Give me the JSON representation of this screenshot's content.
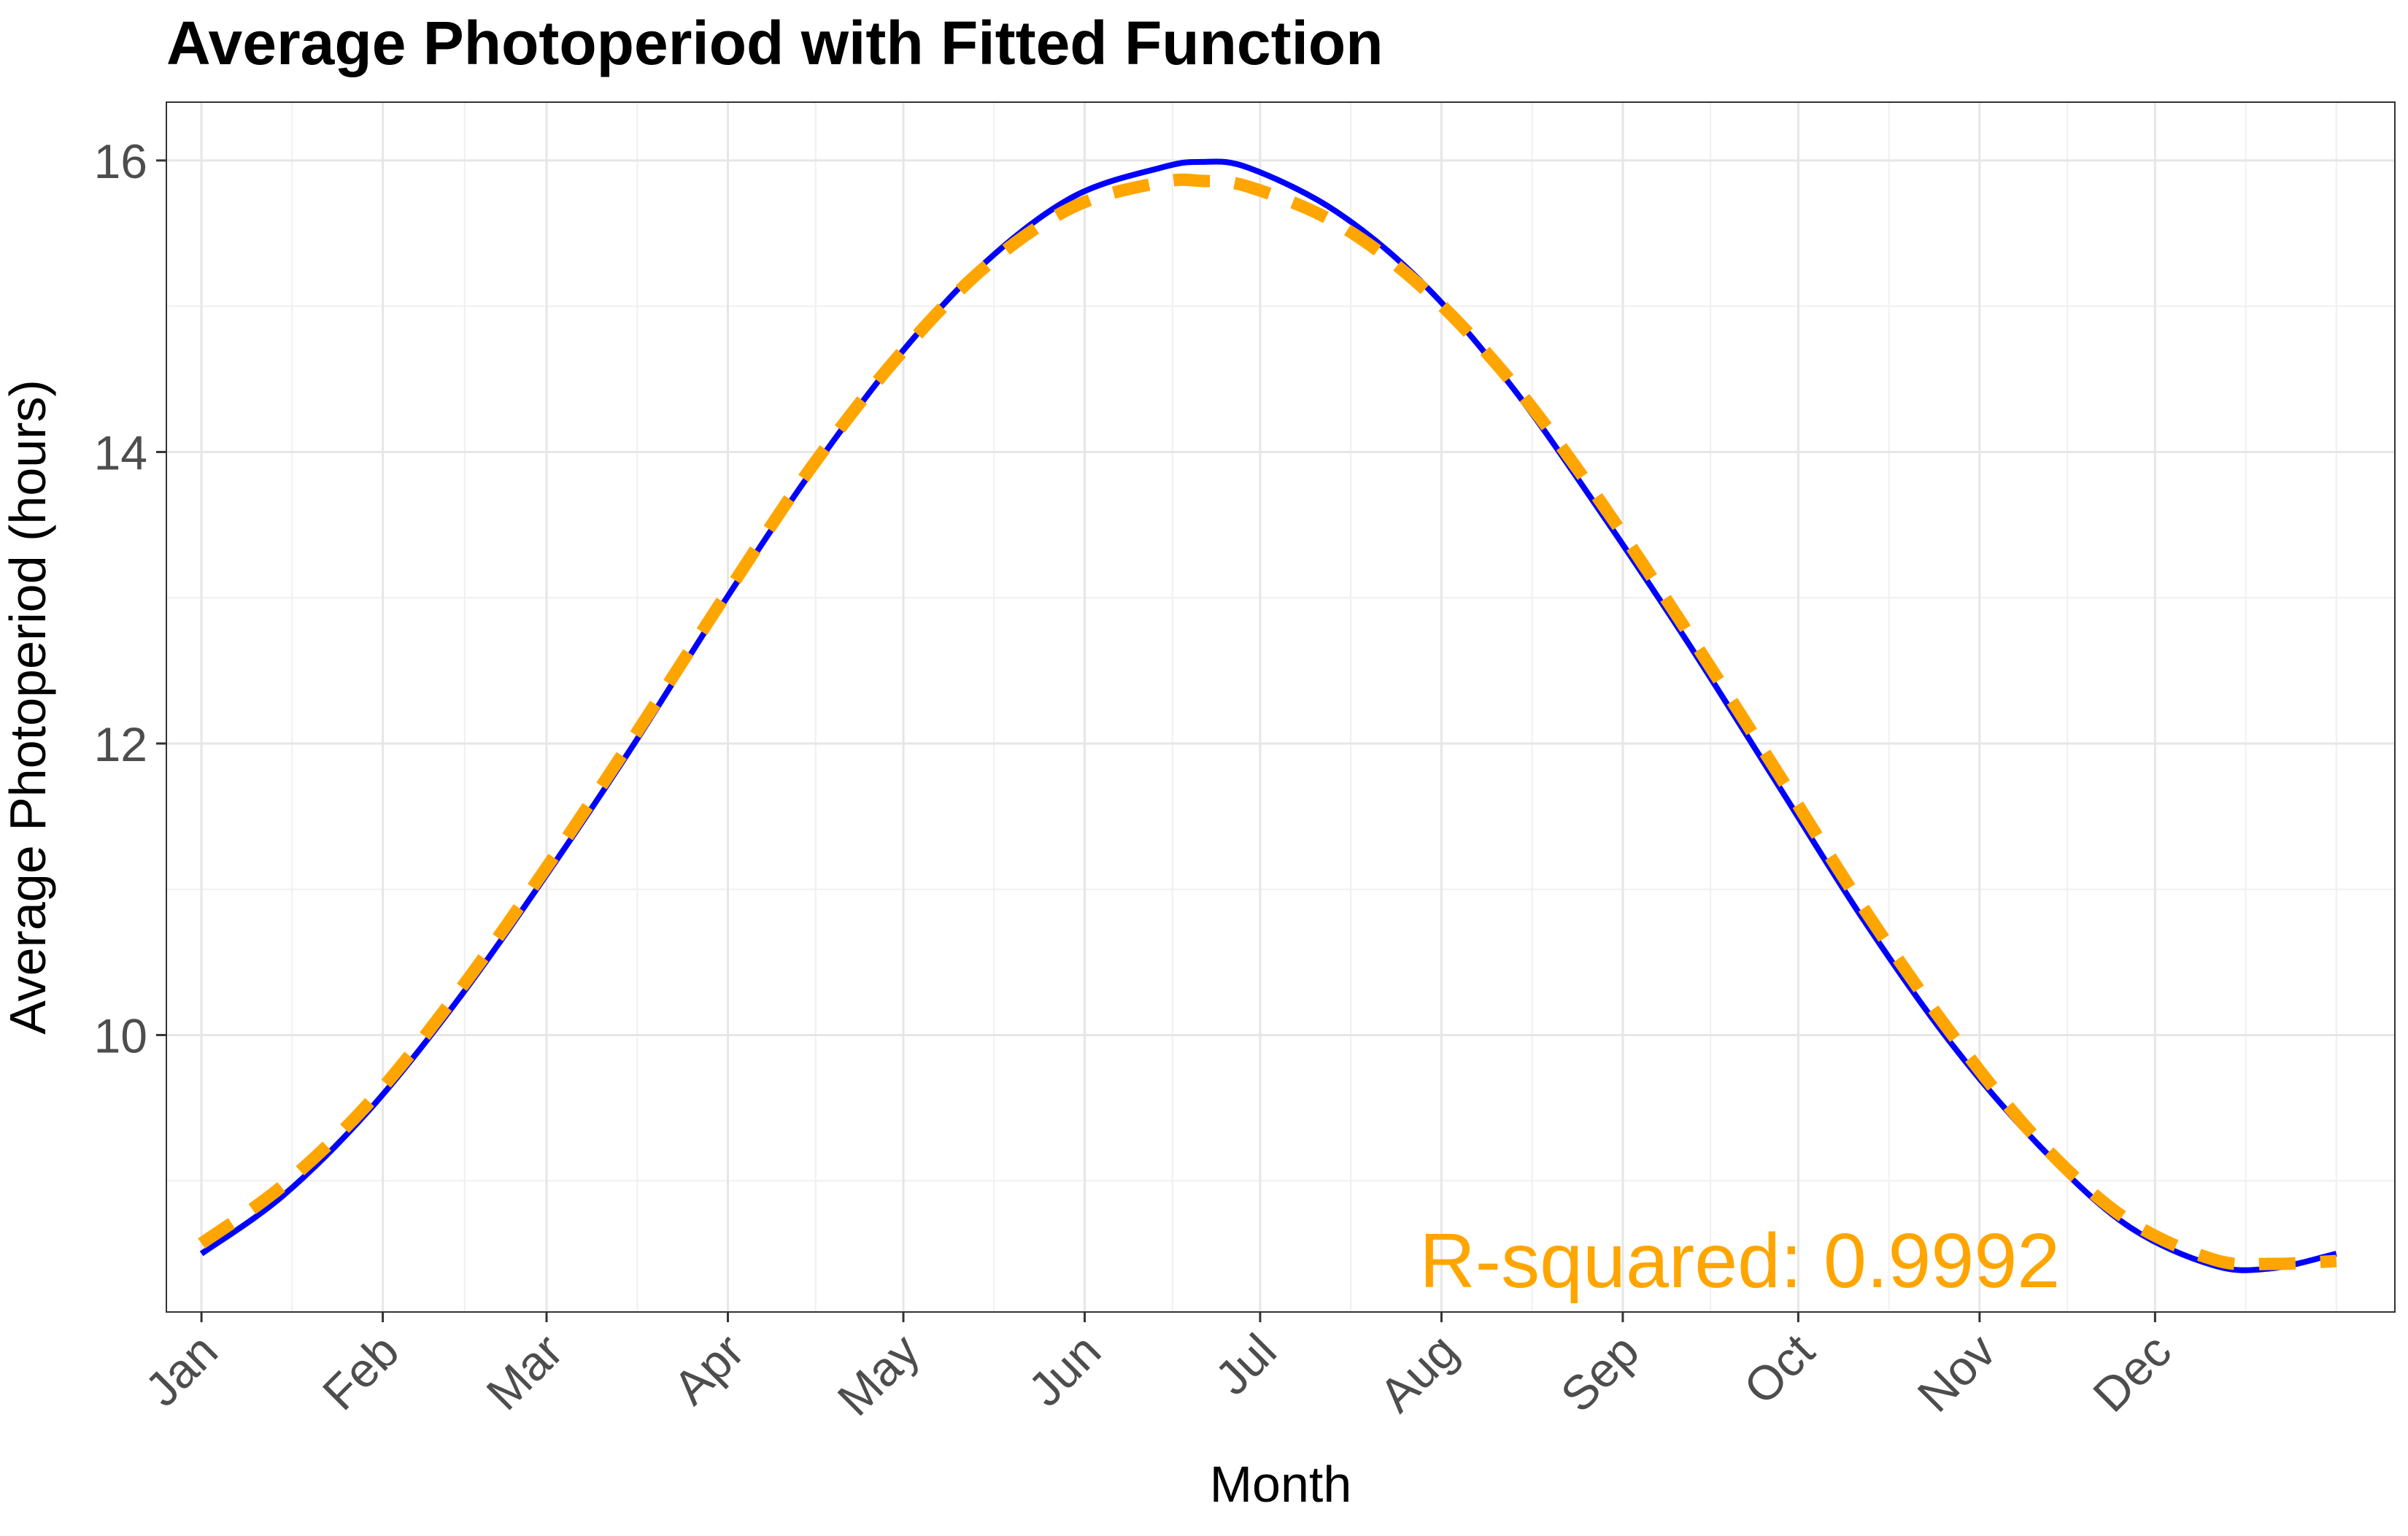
{
  "chart_data": {
    "type": "line",
    "title": "Average Photoperiod with Fitted Function",
    "xlabel": "Month",
    "ylabel": "Average Photoperiod (hours)",
    "x_unit": "day of year",
    "xlim": [
      -5,
      376
    ],
    "ylim": [
      8.1,
      16.4
    ],
    "x_ticks": [
      {
        "label": "Jan",
        "x": 1
      },
      {
        "label": "Feb",
        "x": 32
      },
      {
        "label": "Mar",
        "x": 60
      },
      {
        "label": "Apr",
        "x": 91
      },
      {
        "label": "May",
        "x": 121
      },
      {
        "label": "Jun",
        "x": 152
      },
      {
        "label": "Jul",
        "x": 182
      },
      {
        "label": "Aug",
        "x": 213
      },
      {
        "label": "Sep",
        "x": 244
      },
      {
        "label": "Oct",
        "x": 274
      },
      {
        "label": "Nov",
        "x": 305
      },
      {
        "label": "Dec",
        "x": 335
      }
    ],
    "x_minor_ticks": [
      16.5,
      46,
      75.5,
      106,
      136.5,
      167,
      197.5,
      228.5,
      259,
      289.5,
      320,
      350.5,
      366
    ],
    "y_ticks": [
      10,
      12,
      14,
      16
    ],
    "y_minor_ticks": [
      9,
      11,
      13,
      15
    ],
    "grid": true,
    "series": [
      {
        "style": "solid",
        "color": "#0000ff",
        "x": [
          1,
          15,
          30,
          45,
          60,
          75,
          90,
          105,
          120,
          135,
          150,
          165,
          172,
          180,
          195,
          210,
          225,
          240,
          255,
          270,
          285,
          300,
          315,
          330,
          345,
          355,
          366
        ],
        "y": [
          8.5,
          8.9,
          9.5,
          10.25,
          11.1,
          12.0,
          12.95,
          13.85,
          14.65,
          15.3,
          15.75,
          15.95,
          15.99,
          15.95,
          15.65,
          15.15,
          14.45,
          13.6,
          12.7,
          11.75,
          10.8,
          9.95,
          9.25,
          8.7,
          8.42,
          8.4,
          8.5
        ]
      },
      {
        "style": "dashed",
        "color": "#ffa500",
        "x": [
          1,
          15,
          30,
          45,
          60,
          75,
          90,
          105,
          120,
          135,
          150,
          165,
          172,
          180,
          195,
          210,
          225,
          240,
          255,
          270,
          285,
          300,
          315,
          330,
          345,
          355,
          366
        ],
        "y": [
          8.57,
          8.97,
          9.55,
          10.3,
          11.15,
          12.05,
          12.98,
          13.88,
          14.65,
          15.27,
          15.68,
          15.85,
          15.86,
          15.82,
          15.57,
          15.12,
          14.48,
          13.67,
          12.77,
          11.83,
          10.88,
          10.02,
          9.28,
          8.74,
          8.46,
          8.43,
          8.45
        ]
      }
    ],
    "annotation": {
      "text": "R-squared: 0.9992",
      "x": 264,
      "y": 8.45,
      "color": "#ffa500"
    }
  }
}
